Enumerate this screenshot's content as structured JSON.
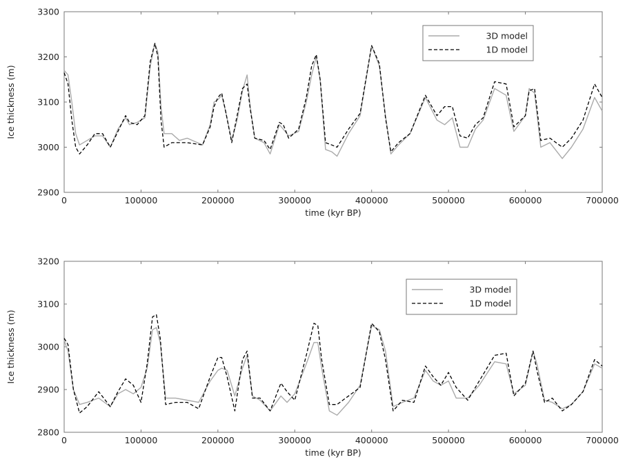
{
  "chart_data": [
    {
      "type": "line",
      "xlabel": "time (kyr BP)",
      "ylabel": "Ice thickness (m)",
      "xlim": [
        0,
        700000
      ],
      "ylim": [
        2900,
        3300
      ],
      "xticks": [
        0,
        100000,
        200000,
        300000,
        400000,
        500000,
        600000,
        700000
      ],
      "yticks": [
        2900,
        3000,
        3100,
        3200,
        3300
      ],
      "grid": false,
      "legend": "top-right",
      "series": [
        {
          "name": "3D model",
          "color": "#aaaaaa",
          "dash": "solid",
          "x": [
            0,
            5000,
            10000,
            15000,
            20000,
            30000,
            40000,
            50000,
            60000,
            70000,
            80000,
            85000,
            95000,
            105000,
            112000,
            118000,
            122000,
            126000,
            130000,
            140000,
            150000,
            160000,
            180000,
            190000,
            195000,
            200000,
            205000,
            210000,
            218000,
            225000,
            232000,
            238000,
            242000,
            248000,
            260000,
            268000,
            280000,
            285000,
            292000,
            305000,
            315000,
            322000,
            328000,
            333000,
            340000,
            348000,
            355000,
            370000,
            385000,
            400000,
            410000,
            418000,
            425000,
            435000,
            450000,
            470000,
            485000,
            495000,
            505000,
            515000,
            525000,
            535000,
            545000,
            560000,
            575000,
            585000,
            600000,
            605000,
            612000,
            620000,
            632000,
            648000,
            660000,
            675000,
            690000,
            700000
          ],
          "y": [
            3170,
            3160,
            3100,
            3030,
            3005,
            3015,
            3025,
            3025,
            3000,
            3040,
            3065,
            3050,
            3055,
            3065,
            3180,
            3230,
            3210,
            3090,
            3030,
            3030,
            3015,
            3020,
            3005,
            3050,
            3100,
            3105,
            3115,
            3080,
            3015,
            3060,
            3125,
            3160,
            3090,
            3020,
            3010,
            2985,
            3050,
            3040,
            3025,
            3035,
            3100,
            3160,
            3200,
            3150,
            2995,
            2990,
            2980,
            3030,
            3070,
            3225,
            3180,
            3070,
            2985,
            3005,
            3030,
            3110,
            3060,
            3050,
            3065,
            3000,
            3000,
            3040,
            3060,
            3130,
            3115,
            3035,
            3070,
            3130,
            3120,
            3000,
            3010,
            2975,
            3000,
            3040,
            3110,
            3080
          ]
        },
        {
          "name": "1D model",
          "color": "#000000",
          "dash": "dashed",
          "x": [
            0,
            5000,
            10000,
            15000,
            20000,
            30000,
            40000,
            50000,
            60000,
            70000,
            80000,
            85000,
            95000,
            105000,
            112000,
            118000,
            122000,
            126000,
            130000,
            140000,
            150000,
            160000,
            180000,
            190000,
            195000,
            200000,
            205000,
            210000,
            218000,
            225000,
            232000,
            238000,
            242000,
            248000,
            260000,
            268000,
            280000,
            285000,
            292000,
            305000,
            315000,
            322000,
            328000,
            333000,
            340000,
            348000,
            355000,
            370000,
            385000,
            400000,
            410000,
            418000,
            425000,
            435000,
            450000,
            470000,
            485000,
            495000,
            505000,
            515000,
            525000,
            535000,
            545000,
            560000,
            575000,
            585000,
            600000,
            605000,
            612000,
            620000,
            632000,
            648000,
            660000,
            675000,
            690000,
            700000
          ],
          "y": [
            3165,
            3140,
            3060,
            3000,
            2985,
            3005,
            3030,
            3030,
            3000,
            3035,
            3070,
            3055,
            3050,
            3070,
            3190,
            3230,
            3200,
            3060,
            3000,
            3010,
            3010,
            3010,
            3005,
            3045,
            3090,
            3110,
            3120,
            3080,
            3010,
            3070,
            3130,
            3140,
            3085,
            3020,
            3015,
            2995,
            3055,
            3050,
            3020,
            3040,
            3110,
            3180,
            3205,
            3150,
            3010,
            3005,
            3000,
            3040,
            3075,
            3225,
            3185,
            3065,
            2990,
            3010,
            3030,
            3115,
            3070,
            3090,
            3090,
            3025,
            3020,
            3050,
            3065,
            3145,
            3140,
            3045,
            3070,
            3125,
            3130,
            3015,
            3020,
            3000,
            3020,
            3060,
            3140,
            3110
          ]
        }
      ]
    },
    {
      "type": "line",
      "xlabel": "time (kyr BP)",
      "ylabel": "Ice thickness (m)",
      "xlim": [
        0,
        700000
      ],
      "ylim": [
        2800,
        3200
      ],
      "xticks": [
        0,
        100000,
        200000,
        300000,
        400000,
        500000,
        600000,
        700000
      ],
      "yticks": [
        2800,
        2900,
        3000,
        3100,
        3200
      ],
      "grid": false,
      "legend": "top-right",
      "series": [
        {
          "name": "3D model",
          "color": "#aaaaaa",
          "dash": "solid",
          "x": [
            0,
            5000,
            12000,
            20000,
            30000,
            45000,
            60000,
            70000,
            80000,
            90000,
            100000,
            108000,
            115000,
            120000,
            125000,
            132000,
            145000,
            160000,
            175000,
            190000,
            200000,
            205000,
            212000,
            222000,
            232000,
            238000,
            245000,
            255000,
            268000,
            282000,
            290000,
            300000,
            315000,
            325000,
            330000,
            335000,
            345000,
            355000,
            370000,
            385000,
            400000,
            410000,
            418000,
            428000,
            440000,
            455000,
            470000,
            480000,
            490000,
            500000,
            510000,
            525000,
            540000,
            560000,
            575000,
            585000,
            600000,
            610000,
            615000,
            625000,
            635000,
            648000,
            660000,
            675000,
            690000,
            700000
          ],
          "y": [
            3015,
            2990,
            2900,
            2865,
            2870,
            2880,
            2860,
            2890,
            2900,
            2890,
            2905,
            2950,
            3040,
            3045,
            3010,
            2880,
            2880,
            2875,
            2870,
            2920,
            2945,
            2950,
            2945,
            2885,
            2950,
            2980,
            2885,
            2875,
            2850,
            2885,
            2870,
            2890,
            2960,
            3010,
            3010,
            2950,
            2850,
            2840,
            2870,
            2910,
            3050,
            3040,
            2990,
            2860,
            2870,
            2880,
            2945,
            2920,
            2910,
            2920,
            2880,
            2880,
            2910,
            2965,
            2960,
            2890,
            2910,
            2990,
            2960,
            2875,
            2870,
            2855,
            2865,
            2895,
            2960,
            2950
          ]
        },
        {
          "name": "1D model",
          "color": "#000000",
          "dash": "dashed",
          "x": [
            0,
            5000,
            12000,
            20000,
            30000,
            45000,
            60000,
            70000,
            80000,
            90000,
            100000,
            108000,
            115000,
            120000,
            125000,
            132000,
            145000,
            160000,
            175000,
            190000,
            200000,
            205000,
            212000,
            222000,
            232000,
            238000,
            245000,
            255000,
            268000,
            282000,
            290000,
            300000,
            315000,
            325000,
            330000,
            335000,
            345000,
            355000,
            370000,
            385000,
            400000,
            410000,
            418000,
            428000,
            440000,
            455000,
            470000,
            480000,
            490000,
            500000,
            510000,
            525000,
            540000,
            560000,
            575000,
            585000,
            600000,
            610000,
            615000,
            625000,
            635000,
            648000,
            660000,
            675000,
            690000,
            700000
          ],
          "y": [
            3020,
            3005,
            2900,
            2845,
            2860,
            2895,
            2860,
            2895,
            2925,
            2910,
            2870,
            2960,
            3070,
            3075,
            3020,
            2865,
            2870,
            2870,
            2855,
            2930,
            2975,
            2975,
            2930,
            2850,
            2970,
            2990,
            2880,
            2880,
            2850,
            2915,
            2895,
            2875,
            2980,
            3055,
            3050,
            2970,
            2865,
            2865,
            2885,
            2905,
            3055,
            3035,
            2970,
            2850,
            2875,
            2870,
            2955,
            2930,
            2910,
            2940,
            2905,
            2875,
            2920,
            2980,
            2985,
            2885,
            2915,
            2990,
            2945,
            2870,
            2880,
            2850,
            2865,
            2895,
            2970,
            2955
          ]
        }
      ]
    }
  ]
}
